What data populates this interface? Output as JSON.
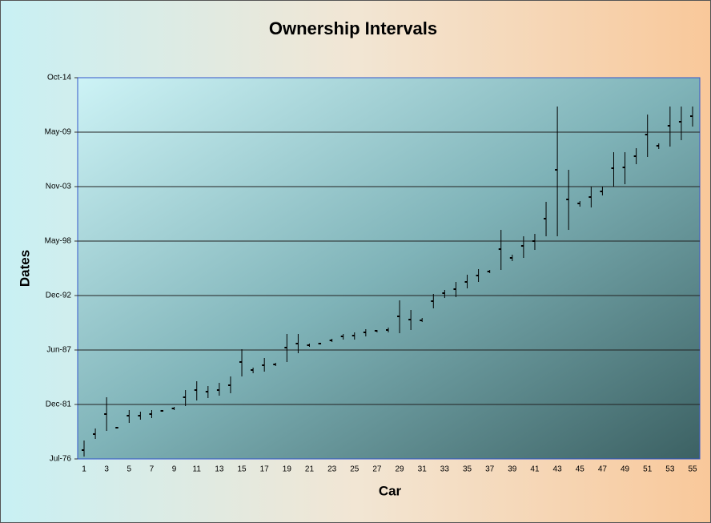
{
  "chart_data": {
    "type": "hlc",
    "title": "Ownership Intervals",
    "x_label": "Car",
    "y_label": "Dates",
    "categories": [
      "1",
      null,
      "3",
      null,
      "5",
      null,
      "7",
      null,
      "9",
      null,
      "11",
      null,
      "13",
      null,
      "15",
      null,
      "17",
      null,
      "19",
      null,
      "21",
      null,
      "23",
      null,
      "25",
      null,
      "27",
      null,
      "29",
      null,
      "31",
      null,
      "33",
      null,
      "35",
      null,
      "37",
      null,
      "39",
      null,
      "41",
      null,
      "43",
      null,
      "45",
      null,
      "47",
      null,
      "49",
      null,
      "51",
      null,
      "53",
      null,
      "55"
    ],
    "high": [
      28620,
      29062,
      30209,
      29120,
      29738,
      29679,
      29738,
      29738,
      29856,
      30473,
      30797,
      30620,
      30738,
      30973,
      31973,
      31297,
      31650,
      31473,
      32532,
      32532,
      32179,
      32208,
      32356,
      32532,
      32591,
      32708,
      32679,
      32767,
      33767,
      33414,
      33120,
      34002,
      34150,
      34444,
      34708,
      34914,
      34885,
      36355,
      35444,
      36120,
      36208,
      37385,
      40884,
      38561,
      37414,
      37943,
      37943,
      39208,
      39208,
      39355,
      40590,
      39532,
      40884,
      40884,
      40884
    ],
    "low": [
      28032,
      28679,
      28973,
      29062,
      29267,
      29385,
      29444,
      29679,
      29738,
      29885,
      30091,
      30179,
      30267,
      30356,
      30973,
      31091,
      31150,
      31356,
      31503,
      31826,
      32061,
      32150,
      32238,
      32326,
      32326,
      32444,
      32591,
      32591,
      32561,
      32679,
      32973,
      33473,
      33855,
      33885,
      34208,
      34444,
      34767,
      34885,
      35208,
      35326,
      35620,
      36120,
      36120,
      36355,
      37208,
      37179,
      37620,
      37943,
      38032,
      38767,
      39032,
      39326,
      39414,
      39649,
      40149
    ],
    "values": [
      28268,
      28856,
      29591,
      29091,
      29532,
      29532,
      29591,
      29709,
      29797,
      30209,
      30473,
      30414,
      30473,
      30650,
      31503,
      31209,
      31385,
      31414,
      32032,
      32179,
      32120,
      32179,
      32297,
      32444,
      32473,
      32591,
      32650,
      32679,
      33179,
      33061,
      33032,
      33738,
      34032,
      34179,
      34444,
      34679,
      34826,
      35649,
      35326,
      35767,
      35944,
      36767,
      38561,
      37473,
      37326,
      37561,
      37767,
      38620,
      38649,
      39061,
      39855,
      39443,
      40179,
      40326,
      40531
    ],
    "color": "#000000",
    "ylim": [
      27944,
      41944
    ],
    "yticks": [
      {
        "value": 27944,
        "label": "Jul-76"
      },
      {
        "value": 29944,
        "label": "Dec-81"
      },
      {
        "value": 31944,
        "label": "Jun-87"
      },
      {
        "value": 33944,
        "label": "Dec-92"
      },
      {
        "value": 35944,
        "label": "May-98"
      },
      {
        "value": 37944,
        "label": "Nov-03"
      },
      {
        "value": 39944,
        "label": "May-09"
      },
      {
        "value": 41944,
        "label": "Oct-14"
      }
    ],
    "grid": true
  }
}
